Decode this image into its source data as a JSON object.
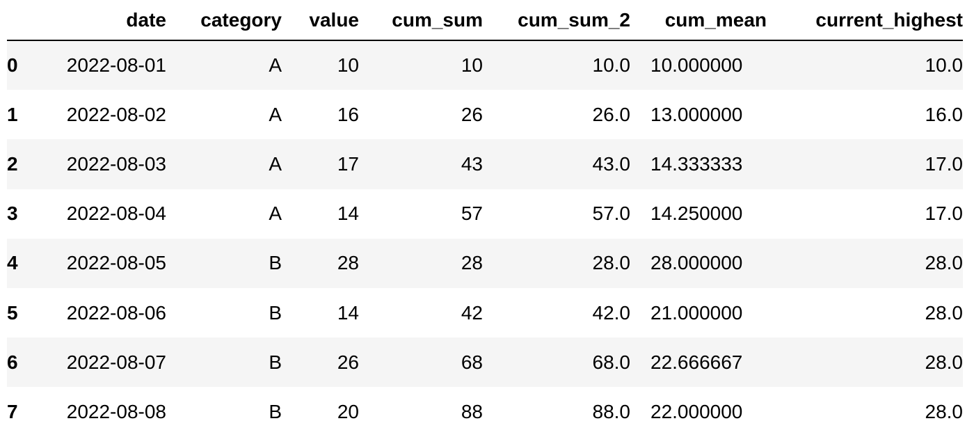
{
  "table": {
    "columns": [
      "",
      "date",
      "category",
      "value",
      "cum_sum",
      "cum_sum_2",
      "cum_mean",
      "current_highest"
    ],
    "rows": [
      {
        "index": "0",
        "cells": [
          "2022-08-01",
          "A",
          "10",
          "10",
          "10.0",
          "10.000000",
          "10.0"
        ]
      },
      {
        "index": "1",
        "cells": [
          "2022-08-02",
          "A",
          "16",
          "26",
          "26.0",
          "13.000000",
          "16.0"
        ]
      },
      {
        "index": "2",
        "cells": [
          "2022-08-03",
          "A",
          "17",
          "43",
          "43.0",
          "14.333333",
          "17.0"
        ]
      },
      {
        "index": "3",
        "cells": [
          "2022-08-04",
          "A",
          "14",
          "57",
          "57.0",
          "14.250000",
          "17.0"
        ]
      },
      {
        "index": "4",
        "cells": [
          "2022-08-05",
          "B",
          "28",
          "28",
          "28.0",
          "28.000000",
          "28.0"
        ]
      },
      {
        "index": "5",
        "cells": [
          "2022-08-06",
          "B",
          "14",
          "42",
          "42.0",
          "21.000000",
          "28.0"
        ]
      },
      {
        "index": "6",
        "cells": [
          "2022-08-07",
          "B",
          "26",
          "68",
          "68.0",
          "22.666667",
          "28.0"
        ]
      },
      {
        "index": "7",
        "cells": [
          "2022-08-08",
          "B",
          "20",
          "88",
          "88.0",
          "22.000000",
          "28.0"
        ]
      }
    ]
  }
}
